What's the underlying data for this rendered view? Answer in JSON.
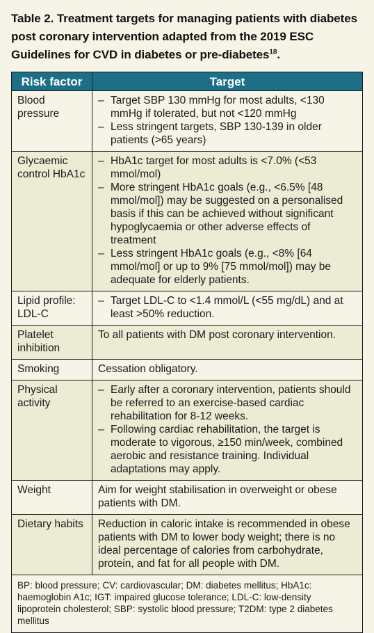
{
  "caption": {
    "text": "Table 2. Treatment targets for managing patients with diabetes post coronary intervention adapted from the 2019 ESC Guidelines for CVD in diabetes or pre-diabetes",
    "ref": "18",
    "end": "."
  },
  "headers": {
    "risk_factor": "Risk factor",
    "target": "Target"
  },
  "rows": [
    {
      "factor": "Blood pressure",
      "bullets": [
        "Target SBP 130 mmHg for most adults, <130 mmHg if tolerated, but not <120 mmHg",
        "Less stringent targets, SBP 130-139 in older patients (>65 years)"
      ]
    },
    {
      "factor": "Glycaemic control HbA1c",
      "bullets": [
        "HbA1c target for most adults is <7.0% (<53 mmol/mol)",
        "More stringent HbA1c goals (e.g., <6.5% [48 mmol/mol]) may be suggested on a personalised basis if this can be achieved without significant hypoglycaemia or other adverse effects of treatment",
        "Less stringent HbA1c goals (e.g., <8% [64 mmol/mol] or up to 9% [75 mmol/mol]) may be adequate for elderly patients."
      ]
    },
    {
      "factor": "Lipid profile: LDL-C",
      "bullets": [
        "Target LDL-C to <1.4 mmol/L (<55 mg/dL) and at least >50% reduction."
      ]
    },
    {
      "factor": "Platelet inhibition",
      "text": "To all patients with DM post coronary intervention."
    },
    {
      "factor": "Smoking",
      "text": "Cessation obligatory."
    },
    {
      "factor": "Physical activity",
      "bullets": [
        "Early after a coronary intervention, patients should be referred to an exercise-based cardiac rehabilitation for 8-12 weeks.",
        "Following cardiac rehabilitation, the target is moderate to vigorous, ≥150 min/week, combined aerobic and resistance training. Individual adaptations may apply."
      ]
    },
    {
      "factor": "Weight",
      "text": "Aim for weight stabilisation in overweight or obese patients with DM."
    },
    {
      "factor": "Dietary habits",
      "text": "Reduction in caloric intake is recommended in obese patients with DM to lower body weight; there is no ideal percentage of calories from carbohydrate, protein, and fat for all people with DM."
    }
  ],
  "dash": "–",
  "footnote": "BP: blood pressure; CV: cardiovascular; DM: diabetes mellitus; HbA1c: haemoglobin A1c; IGT: impaired glucose tolerance; LDL-C: low-density lipoprotein cholesterol; SBP: systolic blood pressure; T2DM: type 2 diabetes mellitus"
}
